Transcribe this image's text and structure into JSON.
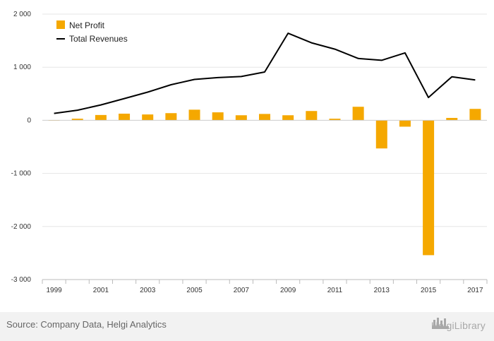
{
  "chart_data": {
    "type": "bar+line",
    "x": [
      "1999",
      "2000",
      "2001",
      "2002",
      "2003",
      "2004",
      "2005",
      "2006",
      "2007",
      "2008",
      "2009",
      "2010",
      "2011",
      "2012",
      "2013",
      "2014",
      "2015",
      "2016",
      "2017"
    ],
    "x_tick_labels": [
      "1999",
      "2001",
      "2003",
      "2005",
      "2007",
      "2009",
      "2011",
      "2013",
      "2015",
      "2017"
    ],
    "series": [
      {
        "name": "Net Profit",
        "kind": "bar",
        "color": "#f5a800",
        "values": [
          5,
          30,
          100,
          125,
          110,
          135,
          200,
          150,
          95,
          120,
          95,
          175,
          30,
          255,
          -530,
          -120,
          -2540,
          45,
          215
        ]
      },
      {
        "name": "Total Revenues",
        "kind": "line",
        "color": "#000000",
        "values": [
          130,
          190,
          290,
          410,
          530,
          670,
          770,
          805,
          825,
          910,
          1640,
          1460,
          1340,
          1165,
          1130,
          1270,
          430,
          820,
          760
        ]
      }
    ],
    "ylim": [
      -3000,
      2000
    ],
    "y_ticks": [
      2000,
      1000,
      0,
      -1000,
      -2000,
      -3000
    ],
    "y_tick_labels": [
      "2 000",
      "1 000",
      "0",
      "-1 000",
      "-2 000",
      "-3 000"
    ],
    "grid": "horizontal",
    "legend": "top-left"
  },
  "footer": {
    "source": "Source: Company Data, Helgi Analytics",
    "brand": "HelgiLibrary"
  }
}
